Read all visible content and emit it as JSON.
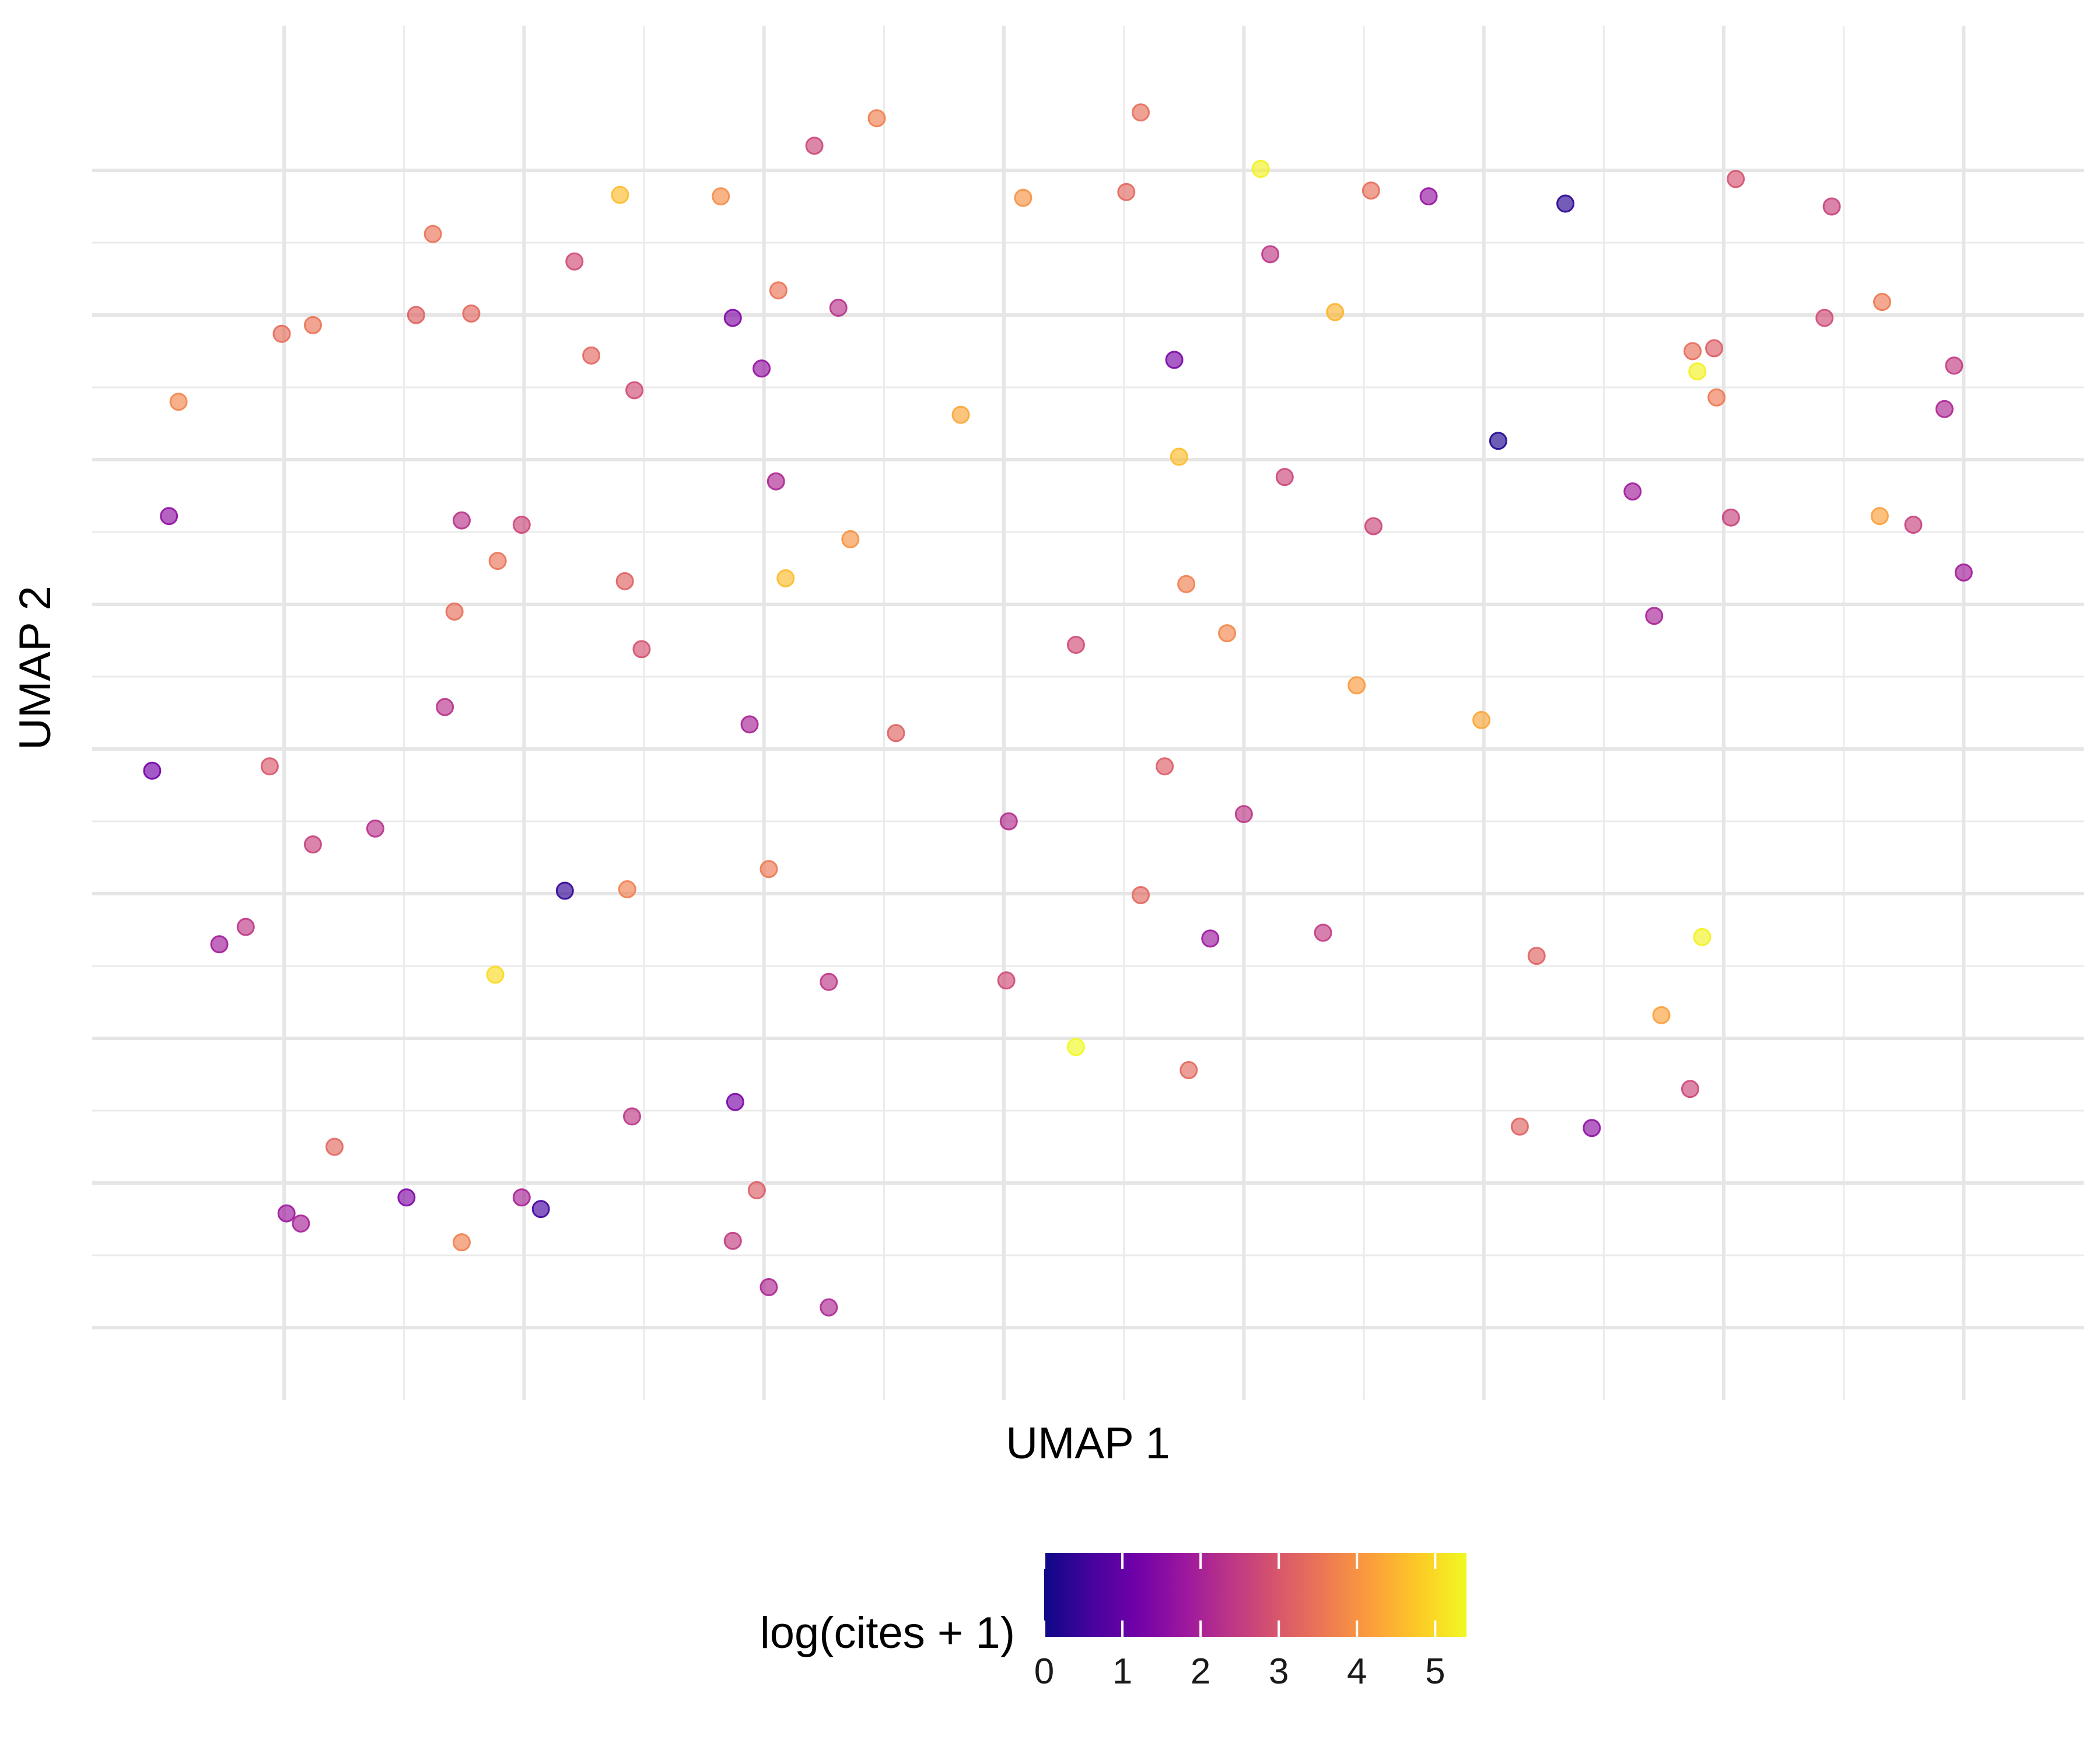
{
  "chart_data": {
    "type": "scatter",
    "title": "",
    "xlabel": "UMAP 1",
    "ylabel": "UMAP 2",
    "xlim": [
      -1.8,
      6.5
    ],
    "ylim": [
      -1.5,
      8.0
    ],
    "x_ticks": [
      -1,
      0,
      1,
      2,
      3,
      4,
      5,
      6
    ],
    "y_ticks": [
      -1,
      0,
      1,
      2,
      3,
      4,
      5,
      6,
      7
    ],
    "x_tick_labels_shown": false,
    "y_tick_labels_shown": false,
    "grid": true,
    "point_opacity": 0.65,
    "colorscale": {
      "name": "plasma",
      "title": "log(cites + 1)",
      "min": 0,
      "max": 5.4,
      "ticks": [
        0,
        1,
        2,
        3,
        4,
        5
      ],
      "tick_labels": [
        "0",
        "1",
        "2",
        "3",
        "4",
        "5"
      ],
      "stops": [
        "#0d0887",
        "#46039f",
        "#7201a8",
        "#9c179e",
        "#bd3786",
        "#d8576b",
        "#ed7953",
        "#fb9f3a",
        "#fdca26",
        "#f0f921"
      ],
      "position": "bottom"
    },
    "points": [
      {
        "x": 2.57,
        "y": 7.4,
        "c": 3.4
      },
      {
        "x": 1.47,
        "y": 7.36,
        "c": 3.7
      },
      {
        "x": 1.21,
        "y": 7.17,
        "c": 2.7
      },
      {
        "x": 3.07,
        "y": 7.01,
        "c": 5.3
      },
      {
        "x": 5.05,
        "y": 6.94,
        "c": 2.9
      },
      {
        "x": 0.4,
        "y": 6.83,
        "c": 4.6
      },
      {
        "x": 0.82,
        "y": 6.82,
        "c": 3.9
      },
      {
        "x": 2.08,
        "y": 6.81,
        "c": 4.0
      },
      {
        "x": 2.51,
        "y": 6.85,
        "c": 3.3
      },
      {
        "x": 3.53,
        "y": 6.86,
        "c": 3.4
      },
      {
        "x": 3.77,
        "y": 6.82,
        "c": 1.7
      },
      {
        "x": 4.34,
        "y": 6.77,
        "c": 0.3
      },
      {
        "x": 5.45,
        "y": 6.75,
        "c": 2.6
      },
      {
        "x": -0.38,
        "y": 6.56,
        "c": 3.5
      },
      {
        "x": 0.21,
        "y": 6.37,
        "c": 2.8
      },
      {
        "x": 3.11,
        "y": 6.42,
        "c": 2.4
      },
      {
        "x": 1.06,
        "y": 6.17,
        "c": 3.5
      },
      {
        "x": 5.66,
        "y": 6.09,
        "c": 3.6
      },
      {
        "x": 1.31,
        "y": 6.05,
        "c": 2.3
      },
      {
        "x": 3.38,
        "y": 6.02,
        "c": 4.5
      },
      {
        "x": -0.88,
        "y": 5.93,
        "c": 3.5
      },
      {
        "x": -1.01,
        "y": 5.87,
        "c": 3.4
      },
      {
        "x": -0.22,
        "y": 6.01,
        "c": 3.3
      },
      {
        "x": -0.45,
        "y": 6.0,
        "c": 3.2
      },
      {
        "x": 0.87,
        "y": 5.98,
        "c": 1.4
      },
      {
        "x": 5.42,
        "y": 5.98,
        "c": 2.8
      },
      {
        "x": 4.96,
        "y": 5.77,
        "c": 3.1
      },
      {
        "x": 0.28,
        "y": 5.72,
        "c": 3.3
      },
      {
        "x": 0.99,
        "y": 5.63,
        "c": 1.7
      },
      {
        "x": 2.71,
        "y": 5.69,
        "c": 1.3
      },
      {
        "x": 5.96,
        "y": 5.65,
        "c": 2.5
      },
      {
        "x": 4.87,
        "y": 5.75,
        "c": 3.4
      },
      {
        "x": 4.89,
        "y": 5.61,
        "c": 5.3
      },
      {
        "x": 0.46,
        "y": 5.48,
        "c": 2.8
      },
      {
        "x": 4.97,
        "y": 5.43,
        "c": 3.6
      },
      {
        "x": 5.92,
        "y": 5.35,
        "c": 2.1
      },
      {
        "x": 1.82,
        "y": 5.31,
        "c": 4.3
      },
      {
        "x": -1.44,
        "y": 5.4,
        "c": 3.8
      },
      {
        "x": 4.06,
        "y": 5.13,
        "c": 0.2
      },
      {
        "x": 2.73,
        "y": 5.02,
        "c": 4.6
      },
      {
        "x": 3.17,
        "y": 4.88,
        "c": 2.7
      },
      {
        "x": 1.05,
        "y": 4.85,
        "c": 2.1
      },
      {
        "x": 4.62,
        "y": 4.78,
        "c": 1.9
      },
      {
        "x": -1.48,
        "y": 4.61,
        "c": 1.6
      },
      {
        "x": -0.26,
        "y": 4.58,
        "c": 2.3
      },
      {
        "x": 5.03,
        "y": 4.6,
        "c": 2.6
      },
      {
        "x": 5.65,
        "y": 4.61,
        "c": 4.2
      },
      {
        "x": 5.79,
        "y": 4.55,
        "c": 2.6
      },
      {
        "x": -0.01,
        "y": 4.55,
        "c": 2.7
      },
      {
        "x": 3.54,
        "y": 4.54,
        "c": 2.7
      },
      {
        "x": 1.36,
        "y": 4.45,
        "c": 4.0
      },
      {
        "x": 1.09,
        "y": 4.18,
        "c": 4.6
      },
      {
        "x": -0.11,
        "y": 4.3,
        "c": 3.5
      },
      {
        "x": 0.42,
        "y": 4.16,
        "c": 3.2
      },
      {
        "x": 2.76,
        "y": 4.14,
        "c": 3.7
      },
      {
        "x": 6.0,
        "y": 4.22,
        "c": 1.9
      },
      {
        "x": -0.29,
        "y": 3.95,
        "c": 3.4
      },
      {
        "x": 4.71,
        "y": 3.92,
        "c": 2.0
      },
      {
        "x": 2.93,
        "y": 3.8,
        "c": 3.8
      },
      {
        "x": 0.49,
        "y": 3.69,
        "c": 2.9
      },
      {
        "x": 2.3,
        "y": 3.72,
        "c": 2.8
      },
      {
        "x": 3.47,
        "y": 3.44,
        "c": 4.1
      },
      {
        "x": 3.99,
        "y": 3.2,
        "c": 4.3
      },
      {
        "x": -0.33,
        "y": 3.29,
        "c": 2.3
      },
      {
        "x": 0.94,
        "y": 3.17,
        "c": 2.0
      },
      {
        "x": 1.55,
        "y": 3.11,
        "c": 3.2
      },
      {
        "x": -1.55,
        "y": 2.85,
        "c": 1.2
      },
      {
        "x": -1.06,
        "y": 2.88,
        "c": 3.0
      },
      {
        "x": 2.67,
        "y": 2.88,
        "c": 3.1
      },
      {
        "x": 3.0,
        "y": 2.55,
        "c": 2.4
      },
      {
        "x": 2.02,
        "y": 2.5,
        "c": 2.2
      },
      {
        "x": -0.62,
        "y": 2.45,
        "c": 2.3
      },
      {
        "x": -0.88,
        "y": 2.34,
        "c": 2.6
      },
      {
        "x": 1.02,
        "y": 2.17,
        "c": 3.6
      },
      {
        "x": 0.17,
        "y": 2.02,
        "c": 0.4
      },
      {
        "x": 0.43,
        "y": 2.03,
        "c": 3.7
      },
      {
        "x": 2.57,
        "y": 1.99,
        "c": 3.3
      },
      {
        "x": -1.16,
        "y": 1.77,
        "c": 2.4
      },
      {
        "x": -1.27,
        "y": 1.65,
        "c": 1.9
      },
      {
        "x": 2.86,
        "y": 1.69,
        "c": 1.8
      },
      {
        "x": 3.33,
        "y": 1.73,
        "c": 2.5
      },
      {
        "x": 4.91,
        "y": 1.7,
        "c": 5.3
      },
      {
        "x": 4.22,
        "y": 1.57,
        "c": 3.2
      },
      {
        "x": -0.12,
        "y": 1.44,
        "c": 5.0
      },
      {
        "x": 1.27,
        "y": 1.39,
        "c": 2.4
      },
      {
        "x": 2.01,
        "y": 1.4,
        "c": 2.8
      },
      {
        "x": 4.74,
        "y": 1.16,
        "c": 4.2
      },
      {
        "x": 2.3,
        "y": 0.94,
        "c": 5.4
      },
      {
        "x": 2.77,
        "y": 0.78,
        "c": 3.3
      },
      {
        "x": 4.86,
        "y": 0.65,
        "c": 2.7
      },
      {
        "x": 0.88,
        "y": 0.56,
        "c": 1.3
      },
      {
        "x": 4.15,
        "y": 0.39,
        "c": 3.2
      },
      {
        "x": 4.45,
        "y": 0.38,
        "c": 1.6
      },
      {
        "x": 0.45,
        "y": 0.46,
        "c": 2.4
      },
      {
        "x": -0.79,
        "y": 0.25,
        "c": 3.3
      },
      {
        "x": 0.07,
        "y": -0.18,
        "c": 0.6
      },
      {
        "x": -0.49,
        "y": -0.1,
        "c": 1.4
      },
      {
        "x": 0.97,
        "y": -0.05,
        "c": 3.1
      },
      {
        "x": -0.01,
        "y": -0.1,
        "c": 2.0
      },
      {
        "x": -0.99,
        "y": -0.21,
        "c": 1.8
      },
      {
        "x": -0.93,
        "y": -0.28,
        "c": 2.0
      },
      {
        "x": -0.26,
        "y": -0.41,
        "c": 3.7
      },
      {
        "x": 0.87,
        "y": -0.4,
        "c": 2.5
      },
      {
        "x": 1.02,
        "y": -0.72,
        "c": 2.1
      },
      {
        "x": 1.27,
        "y": -0.86,
        "c": 2.1
      }
    ]
  }
}
